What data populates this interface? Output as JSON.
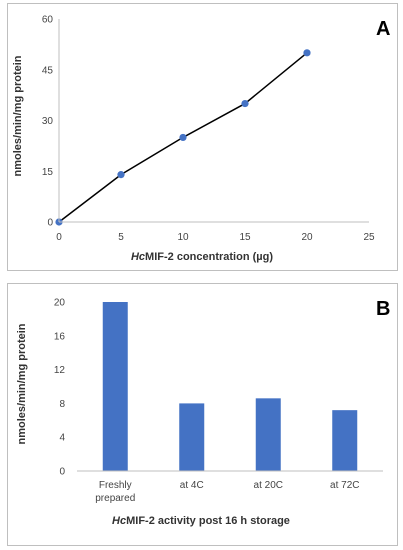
{
  "chart_data": [
    {
      "type": "line",
      "panel_label": "A",
      "x": [
        0,
        5,
        10,
        15,
        20
      ],
      "series": [
        {
          "values": [
            0,
            14,
            25,
            35,
            50
          ]
        }
      ],
      "xlabel_prefix": "Hc",
      "xlabel_rest": "MIF-2 concentration (µg)",
      "ylabel": "nmoles/min/mg protein",
      "xlim": [
        0,
        25
      ],
      "ylim": [
        0,
        60
      ],
      "xticks": [
        "0",
        "5",
        "10",
        "15",
        "20",
        "25"
      ],
      "yticks": [
        "0",
        "15",
        "30",
        "45",
        "60"
      ],
      "grid": false,
      "colors": {
        "line": "#000000",
        "marker": "#4472c4"
      }
    },
    {
      "type": "bar",
      "panel_label": "B",
      "categories": [
        "Freshly prepared",
        "at 4C",
        "at 20C",
        "at 72C"
      ],
      "category_lines": [
        [
          "Freshly",
          "prepared"
        ],
        [
          "at 4C"
        ],
        [
          "at 20C"
        ],
        [
          "at 72C"
        ]
      ],
      "values": [
        20,
        8,
        8.6,
        7.2
      ],
      "xlabel_prefix": "Hc",
      "xlabel_rest": "MIF-2 activity post 16 h storage",
      "ylabel": "nmoles/min/mg protein",
      "ylim": [
        0,
        20
      ],
      "yticks": [
        "0",
        "4",
        "8",
        "12",
        "16",
        "20"
      ],
      "grid": false,
      "colors": {
        "bar": "#4472c4"
      }
    }
  ]
}
